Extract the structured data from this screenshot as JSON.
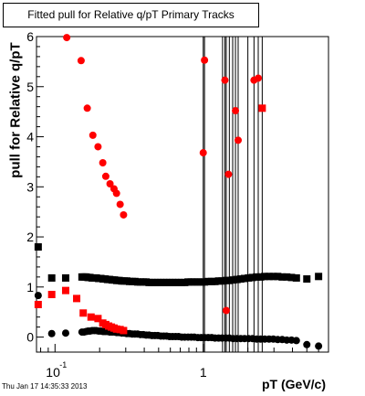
{
  "title": "Fitted pull for Relative q/pT  Primary Tracks",
  "footer": "Thu Jan 17 14:35:33 2013",
  "chart_data": {
    "type": "scatter",
    "xlabel": "pT (GeV/c)",
    "ylabel": "pull for Relative q/pT",
    "x_scale": "log",
    "xlim": [
      0.075,
      7
    ],
    "ylim": [
      -0.3,
      6
    ],
    "x_tick_labels": [
      "10",
      "-1",
      "1"
    ],
    "y_tick_labels": [
      "0",
      "1",
      "2",
      "3",
      "4",
      "5",
      "6"
    ],
    "series": [
      {
        "color": "#000000",
        "marker": "square",
        "x": [
          0.077,
          0.095,
          0.118,
          0.152,
          0.157,
          0.162,
          0.167,
          0.172,
          0.178,
          0.184,
          0.19,
          0.197,
          0.204,
          0.211,
          0.218,
          0.226,
          0.234,
          0.243,
          0.252,
          0.261,
          0.271,
          0.282,
          0.293,
          0.305,
          0.318,
          0.332,
          0.346,
          0.361,
          0.377,
          0.394,
          0.412,
          0.431,
          0.451,
          0.472,
          0.494,
          0.517,
          0.541,
          0.566,
          0.593,
          0.621,
          0.651,
          0.682,
          0.715,
          0.75,
          0.79,
          0.83,
          0.87,
          0.92,
          0.97,
          1.02,
          1.08,
          1.14,
          1.2,
          1.27,
          1.34,
          1.42,
          1.5,
          1.59,
          1.69,
          1.79,
          1.9,
          2.02,
          2.15,
          2.29,
          2.44,
          2.6,
          2.78,
          2.97,
          3.18,
          3.41,
          3.66,
          3.94,
          4.25,
          5.0,
          6.0
        ],
        "y": [
          1.8,
          1.18,
          1.18,
          1.2,
          1.2,
          1.2,
          1.19,
          1.19,
          1.18,
          1.18,
          1.18,
          1.17,
          1.17,
          1.16,
          1.16,
          1.15,
          1.15,
          1.14,
          1.14,
          1.13,
          1.13,
          1.12,
          1.12,
          1.12,
          1.11,
          1.11,
          1.11,
          1.1,
          1.1,
          1.1,
          1.1,
          1.09,
          1.09,
          1.09,
          1.09,
          1.09,
          1.09,
          1.09,
          1.09,
          1.09,
          1.09,
          1.09,
          1.09,
          1.09,
          1.1,
          1.1,
          1.1,
          1.1,
          1.1,
          1.1,
          1.11,
          1.11,
          1.11,
          1.12,
          1.12,
          1.13,
          1.13,
          1.14,
          1.15,
          1.16,
          1.17,
          1.18,
          1.19,
          1.2,
          1.2,
          1.21,
          1.21,
          1.21,
          1.21,
          1.2,
          1.2,
          1.19,
          1.18,
          1.16,
          1.21
        ]
      },
      {
        "color": "#000000",
        "marker": "circle",
        "x": [
          0.077,
          0.095,
          0.118,
          0.152,
          0.157,
          0.162,
          0.167,
          0.172,
          0.178,
          0.184,
          0.19,
          0.197,
          0.204,
          0.211,
          0.218,
          0.226,
          0.234,
          0.243,
          0.252,
          0.261,
          0.271,
          0.282,
          0.293,
          0.305,
          0.318,
          0.332,
          0.346,
          0.361,
          0.377,
          0.394,
          0.412,
          0.431,
          0.451,
          0.472,
          0.494,
          0.517,
          0.541,
          0.566,
          0.593,
          0.621,
          0.651,
          0.682,
          0.715,
          0.75,
          0.79,
          0.83,
          0.87,
          0.92,
          0.97,
          1.02,
          1.08,
          1.14,
          1.2,
          1.27,
          1.34,
          1.42,
          1.5,
          1.59,
          1.69,
          1.79,
          1.9,
          2.02,
          2.15,
          2.29,
          2.44,
          2.6,
          2.78,
          2.97,
          3.18,
          3.41,
          3.66,
          3.94,
          4.25,
          5.0,
          6.0
        ],
        "y": [
          0.83,
          0.07,
          0.08,
          0.1,
          0.1,
          0.11,
          0.12,
          0.12,
          0.13,
          0.13,
          0.13,
          0.12,
          0.12,
          0.11,
          0.11,
          0.11,
          0.1,
          0.1,
          0.1,
          0.09,
          0.09,
          0.08,
          0.08,
          0.07,
          0.07,
          0.06,
          0.06,
          0.06,
          0.05,
          0.05,
          0.04,
          0.04,
          0.03,
          0.03,
          0.03,
          0.02,
          0.02,
          0.02,
          0.01,
          0.01,
          0.01,
          0.01,
          0.0,
          0.0,
          0.0,
          0.0,
          0.0,
          -0.01,
          -0.01,
          -0.01,
          -0.01,
          -0.01,
          -0.02,
          -0.02,
          -0.02,
          -0.02,
          -0.02,
          -0.03,
          -0.03,
          -0.03,
          -0.03,
          -0.03,
          -0.03,
          -0.04,
          -0.04,
          -0.04,
          -0.04,
          -0.04,
          -0.05,
          -0.05,
          -0.06,
          -0.06,
          -0.07,
          -0.15,
          -0.18
        ]
      },
      {
        "color": "#ff0000",
        "marker": "square",
        "x": [
          0.077,
          0.095,
          0.118,
          0.14,
          0.155,
          0.175,
          0.195,
          0.21,
          0.22,
          0.23,
          0.24,
          0.25,
          0.26,
          0.275,
          0.29
        ],
        "y": [
          0.65,
          0.85,
          0.93,
          0.77,
          0.48,
          0.4,
          0.37,
          0.28,
          0.25,
          0.22,
          0.2,
          0.18,
          0.16,
          0.15,
          0.13
        ]
      },
      {
        "color": "#ff0000",
        "marker": "circle",
        "x": [
          0.12,
          0.15,
          0.165,
          0.18,
          0.195,
          0.21,
          0.22,
          0.235,
          0.25,
          0.26,
          0.275,
          0.29,
          1.0,
          1.02,
          1.4,
          1.43,
          1.48,
          1.65,
          1.72,
          2.2,
          2.35
        ],
        "y": [
          5.98,
          5.52,
          4.57,
          4.03,
          3.8,
          3.48,
          3.21,
          3.06,
          2.96,
          2.87,
          2.65,
          2.44,
          3.68,
          5.53,
          5.13,
          0.53,
          3.25,
          4.52,
          3.93,
          5.13,
          5.17
        ]
      },
      {
        "color": "#ff0000",
        "marker": "square",
        "x": [
          2.5
        ],
        "y": [
          4.57
        ]
      }
    ]
  }
}
